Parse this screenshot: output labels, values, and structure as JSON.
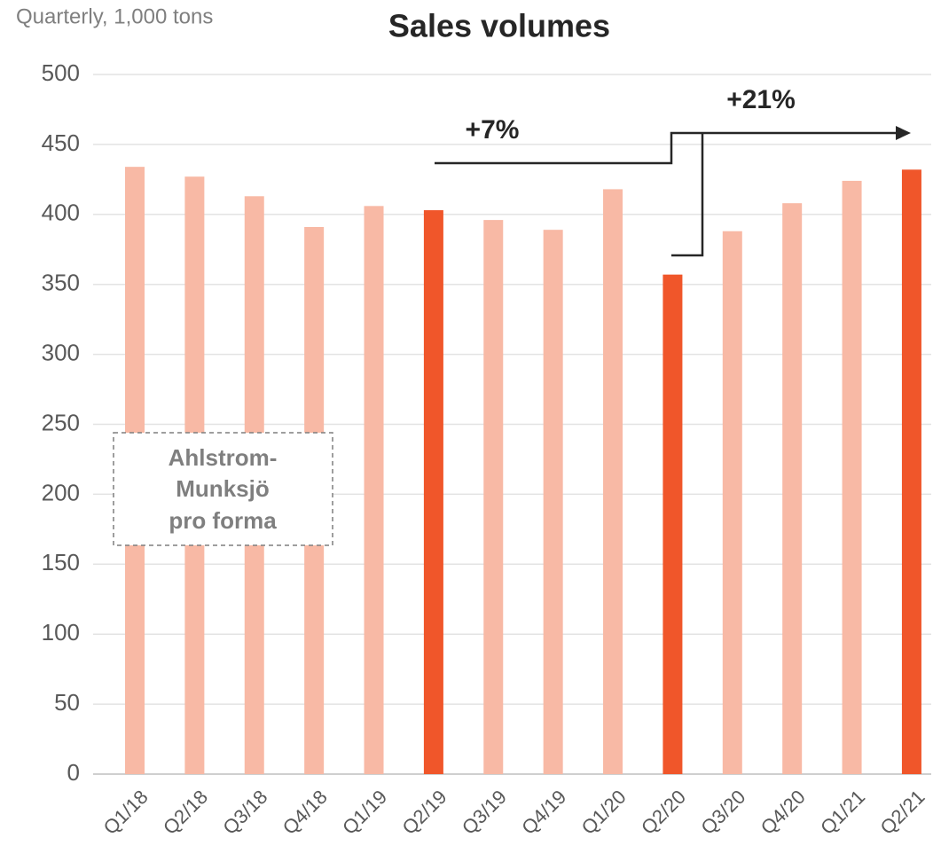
{
  "chart_data": {
    "type": "bar",
    "title": "Sales volumes",
    "subtitle": "Quarterly, 1,000 tons",
    "categories": [
      "Q1/18",
      "Q2/18",
      "Q3/18",
      "Q4/18",
      "Q1/19",
      "Q2/19",
      "Q3/19",
      "Q4/19",
      "Q1/20",
      "Q2/20",
      "Q3/20",
      "Q4/20",
      "Q1/21",
      "Q2/21"
    ],
    "values": [
      434,
      427,
      413,
      391,
      406,
      403,
      396,
      389,
      418,
      357,
      388,
      408,
      424,
      432
    ],
    "colors": [
      "#f8b9a5",
      "#f8b9a5",
      "#f8b9a5",
      "#f8b9a5",
      "#f8b9a5",
      "#f0562a",
      "#f8b9a5",
      "#f8b9a5",
      "#f8b9a5",
      "#f0562a",
      "#f8b9a5",
      "#f8b9a5",
      "#f8b9a5",
      "#f0562a"
    ],
    "ylim": [
      0,
      500
    ],
    "yticks": [
      0,
      50,
      100,
      150,
      200,
      250,
      300,
      350,
      400,
      450,
      500
    ],
    "grid": true,
    "annotations": [
      "+7%",
      "+21%"
    ],
    "box_text": [
      "Ahlstrom-",
      "Munksjö",
      "pro forma"
    ]
  }
}
